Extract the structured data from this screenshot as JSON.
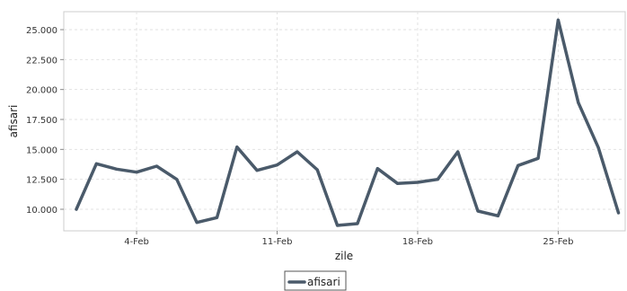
{
  "chart_data": {
    "type": "line",
    "xlabel": "zile",
    "ylabel": "afisari",
    "x": [
      "1-Feb",
      "2-Feb",
      "3-Feb",
      "4-Feb",
      "5-Feb",
      "6-Feb",
      "7-Feb",
      "8-Feb",
      "9-Feb",
      "10-Feb",
      "11-Feb",
      "12-Feb",
      "13-Feb",
      "14-Feb",
      "15-Feb",
      "16-Feb",
      "17-Feb",
      "18-Feb",
      "19-Feb",
      "20-Feb",
      "21-Feb",
      "22-Feb",
      "23-Feb",
      "24-Feb",
      "25-Feb",
      "26-Feb",
      "27-Feb",
      "28-Feb"
    ],
    "x_ticks": [
      "4-Feb",
      "11-Feb",
      "18-Feb",
      "25-Feb"
    ],
    "series": [
      {
        "name": "afisari",
        "color": "#4a5a6a",
        "values": [
          10000,
          13800,
          13350,
          13100,
          13600,
          12500,
          8900,
          9300,
          15200,
          13250,
          13700,
          14800,
          13300,
          8650,
          8800,
          13400,
          12150,
          12250,
          12500,
          14800,
          9850,
          9450,
          13650,
          14250,
          25800,
          18900,
          15150,
          9700
        ]
      }
    ],
    "y_ticks": [
      "10.000",
      "12.500",
      "15.000",
      "17.500",
      "20.000",
      "22.500",
      "25.000"
    ],
    "ylim": [
      8200,
      26500
    ],
    "grid": true,
    "legend": "bottom-center"
  }
}
